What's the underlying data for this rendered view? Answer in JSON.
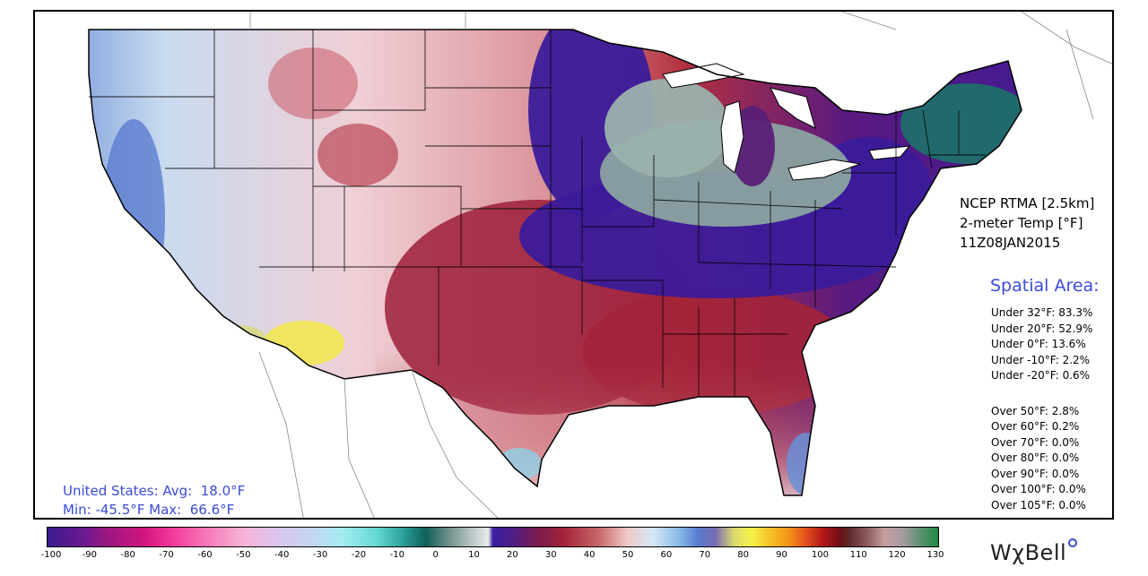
{
  "product": {
    "line1": "NCEP RTMA [2.5km]",
    "line2": "2-meter Temp [°F]",
    "line3": "11Z08JAN2015"
  },
  "spatial": {
    "title": "Spatial Area:",
    "under": [
      "Under 32°F: 83.3%",
      "Under 20°F: 52.9%",
      "Under 0°F: 13.6%",
      "Under -10°F: 2.2%",
      "Under -20°F: 0.6%"
    ],
    "over": [
      "Over 50°F: 2.8%",
      "Over 60°F: 0.2%",
      "Over 70°F: 0.0%",
      "Over 80°F: 0.0%",
      "Over 90°F: 0.0%",
      "Over 100°F: 0.0%",
      "Over 105°F: 0.0%"
    ]
  },
  "summary": {
    "avg": "United States: Avg:  18.0°F",
    "minmax": "Min: -45.5°F Max:  66.6°F"
  },
  "colorbar": {
    "ticks": [
      "-100",
      "-90",
      "-80",
      "-70",
      "-60",
      "-50",
      "-40",
      "-30",
      "-20",
      "-10",
      "0",
      "10",
      "20",
      "30",
      "40",
      "50",
      "60",
      "70",
      "80",
      "90",
      "100",
      "110",
      "120",
      "130"
    ]
  },
  "logo": {
    "text": "WχBell"
  },
  "colors": {
    "accent_blue": "#3a4bd8",
    "cold_purple": "#3b1b9a",
    "warm_red": "#a3233a",
    "frost_teal": "#1f6e6a"
  }
}
